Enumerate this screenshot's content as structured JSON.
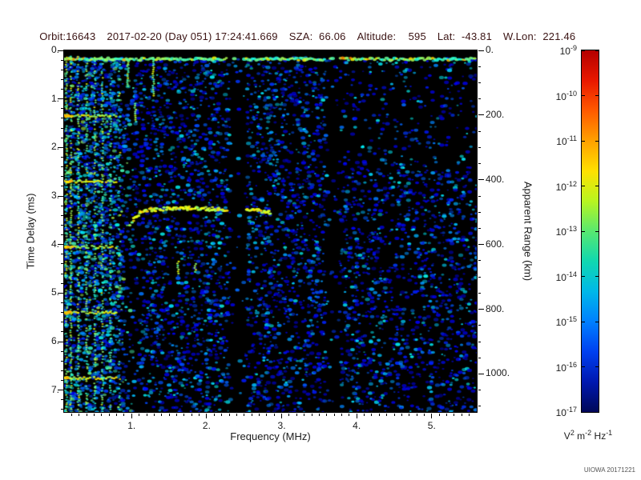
{
  "header": {
    "orbit": "Orbit:16643",
    "datetime": "2017-02-20 (Day 051) 17:24:41.669",
    "sza": "SZA:  66.06",
    "altitude": "Altitude:    595",
    "lat": "Lat:  -43.81",
    "wlon": "W.Lon:  221.46"
  },
  "watermark": "UIOWA 20171221",
  "chart_data": {
    "type": "heatmap",
    "xlabel": "Frequency (MHz)",
    "ylabel": "Time Delay (ms)",
    "y2label": "Apparent Range (km)",
    "x_range": [
      0.1,
      5.6
    ],
    "y_range": [
      0.0,
      7.45
    ],
    "x_ticks": [
      1,
      2,
      3,
      4,
      5
    ],
    "x_tick_labels": [
      "1.",
      "2.",
      "3.",
      "4.",
      "5."
    ],
    "y_ticks": [
      0,
      1,
      2,
      3,
      4,
      5,
      6,
      7
    ],
    "y_tick_labels": [
      "0.",
      "1.",
      "2.",
      "3.",
      "4.",
      "5.",
      "6.",
      "7."
    ],
    "y2_ticks_km": [
      0,
      200,
      400,
      600,
      800,
      1000
    ],
    "y2_tick_labels": [
      "0.",
      "200.",
      "400.",
      "600.",
      "800.",
      "1000."
    ],
    "km_per_ms": 150,
    "colorbar": {
      "scale": "log",
      "base": "10",
      "exponents": [
        "-9",
        "-10",
        "-11",
        "-12",
        "-13",
        "-14",
        "-15",
        "-16",
        "-17"
      ],
      "units_parts": [
        [
          "V",
          "2"
        ],
        [
          "m",
          "-2"
        ],
        [
          "Hz",
          "-1"
        ]
      ],
      "gradient": [
        "#b40000",
        "#e81800",
        "#ff5a00",
        "#ffa000",
        "#ffe000",
        "#b8f520",
        "#58e870",
        "#10d8b0",
        "#00b8e8",
        "#0080ff",
        "#0040f0",
        "#0018b0",
        "#000858"
      ]
    },
    "features": {
      "noise_seed": 20171221,
      "surface_band_delay": 0.18,
      "vertical_harmonics": [
        0.13,
        0.19,
        0.29,
        0.4,
        0.51,
        0.61,
        0.72,
        0.84
      ],
      "harmonic_intensity": [
        0.95,
        0.85,
        0.8,
        0.8,
        0.75,
        0.7,
        0.55,
        0.3
      ],
      "cyclotron_delays": [
        1.35,
        2.7,
        4.05,
        5.4,
        6.75
      ],
      "cyclotron_fmax": 0.8,
      "ionosphere_trace": [
        [
          0.98,
          3.6
        ],
        [
          1.05,
          3.42
        ],
        [
          1.15,
          3.32
        ],
        [
          1.3,
          3.28
        ],
        [
          1.5,
          3.26
        ],
        [
          1.7,
          3.25
        ],
        [
          1.9,
          3.26
        ],
        [
          2.1,
          3.28
        ],
        [
          2.27,
          3.3
        ],
        [
          2.53,
          3.3
        ],
        [
          2.7,
          3.3
        ],
        [
          2.88,
          3.34
        ]
      ],
      "dark_bands": [
        [
          2.28,
          2.52
        ],
        [
          3.58,
          3.78
        ]
      ],
      "dashes": [
        [
          1.29,
          0.15,
          0.95
        ],
        [
          0.95,
          0.2,
          0.75
        ],
        [
          1.05,
          1.1,
          1.5
        ],
        [
          1.62,
          4.35,
          4.62
        ],
        [
          1.85,
          4.4,
          4.58
        ]
      ],
      "density_regions": [
        {
          "f0": 0.1,
          "f1": 5.6,
          "d0": 0,
          "d1": 7.45,
          "v": 0.4
        },
        {
          "f0": 0.1,
          "f1": 0.88,
          "d0": 0,
          "d1": 7.45,
          "v": 0.72
        },
        {
          "f0": 0.88,
          "f1": 1.1,
          "d0": 1.5,
          "d1": 7.45,
          "v": 0.26
        },
        {
          "f0": 2.28,
          "f1": 2.52,
          "d0": 0,
          "d1": 7.45,
          "v": 0.05
        },
        {
          "f0": 3.58,
          "f1": 3.78,
          "d0": 0,
          "d1": 7.45,
          "v": 0.12
        },
        {
          "f0": 3.78,
          "f1": 5.6,
          "d0": 0.25,
          "d1": 2.3,
          "v": 0.16
        },
        {
          "f0": 3.9,
          "f1": 5.6,
          "d0": 2.3,
          "d1": 7.45,
          "v": 0.33
        },
        {
          "f0": 0.1,
          "f1": 5.6,
          "d0": 0,
          "d1": 0.12,
          "v": 0
        }
      ]
    }
  }
}
